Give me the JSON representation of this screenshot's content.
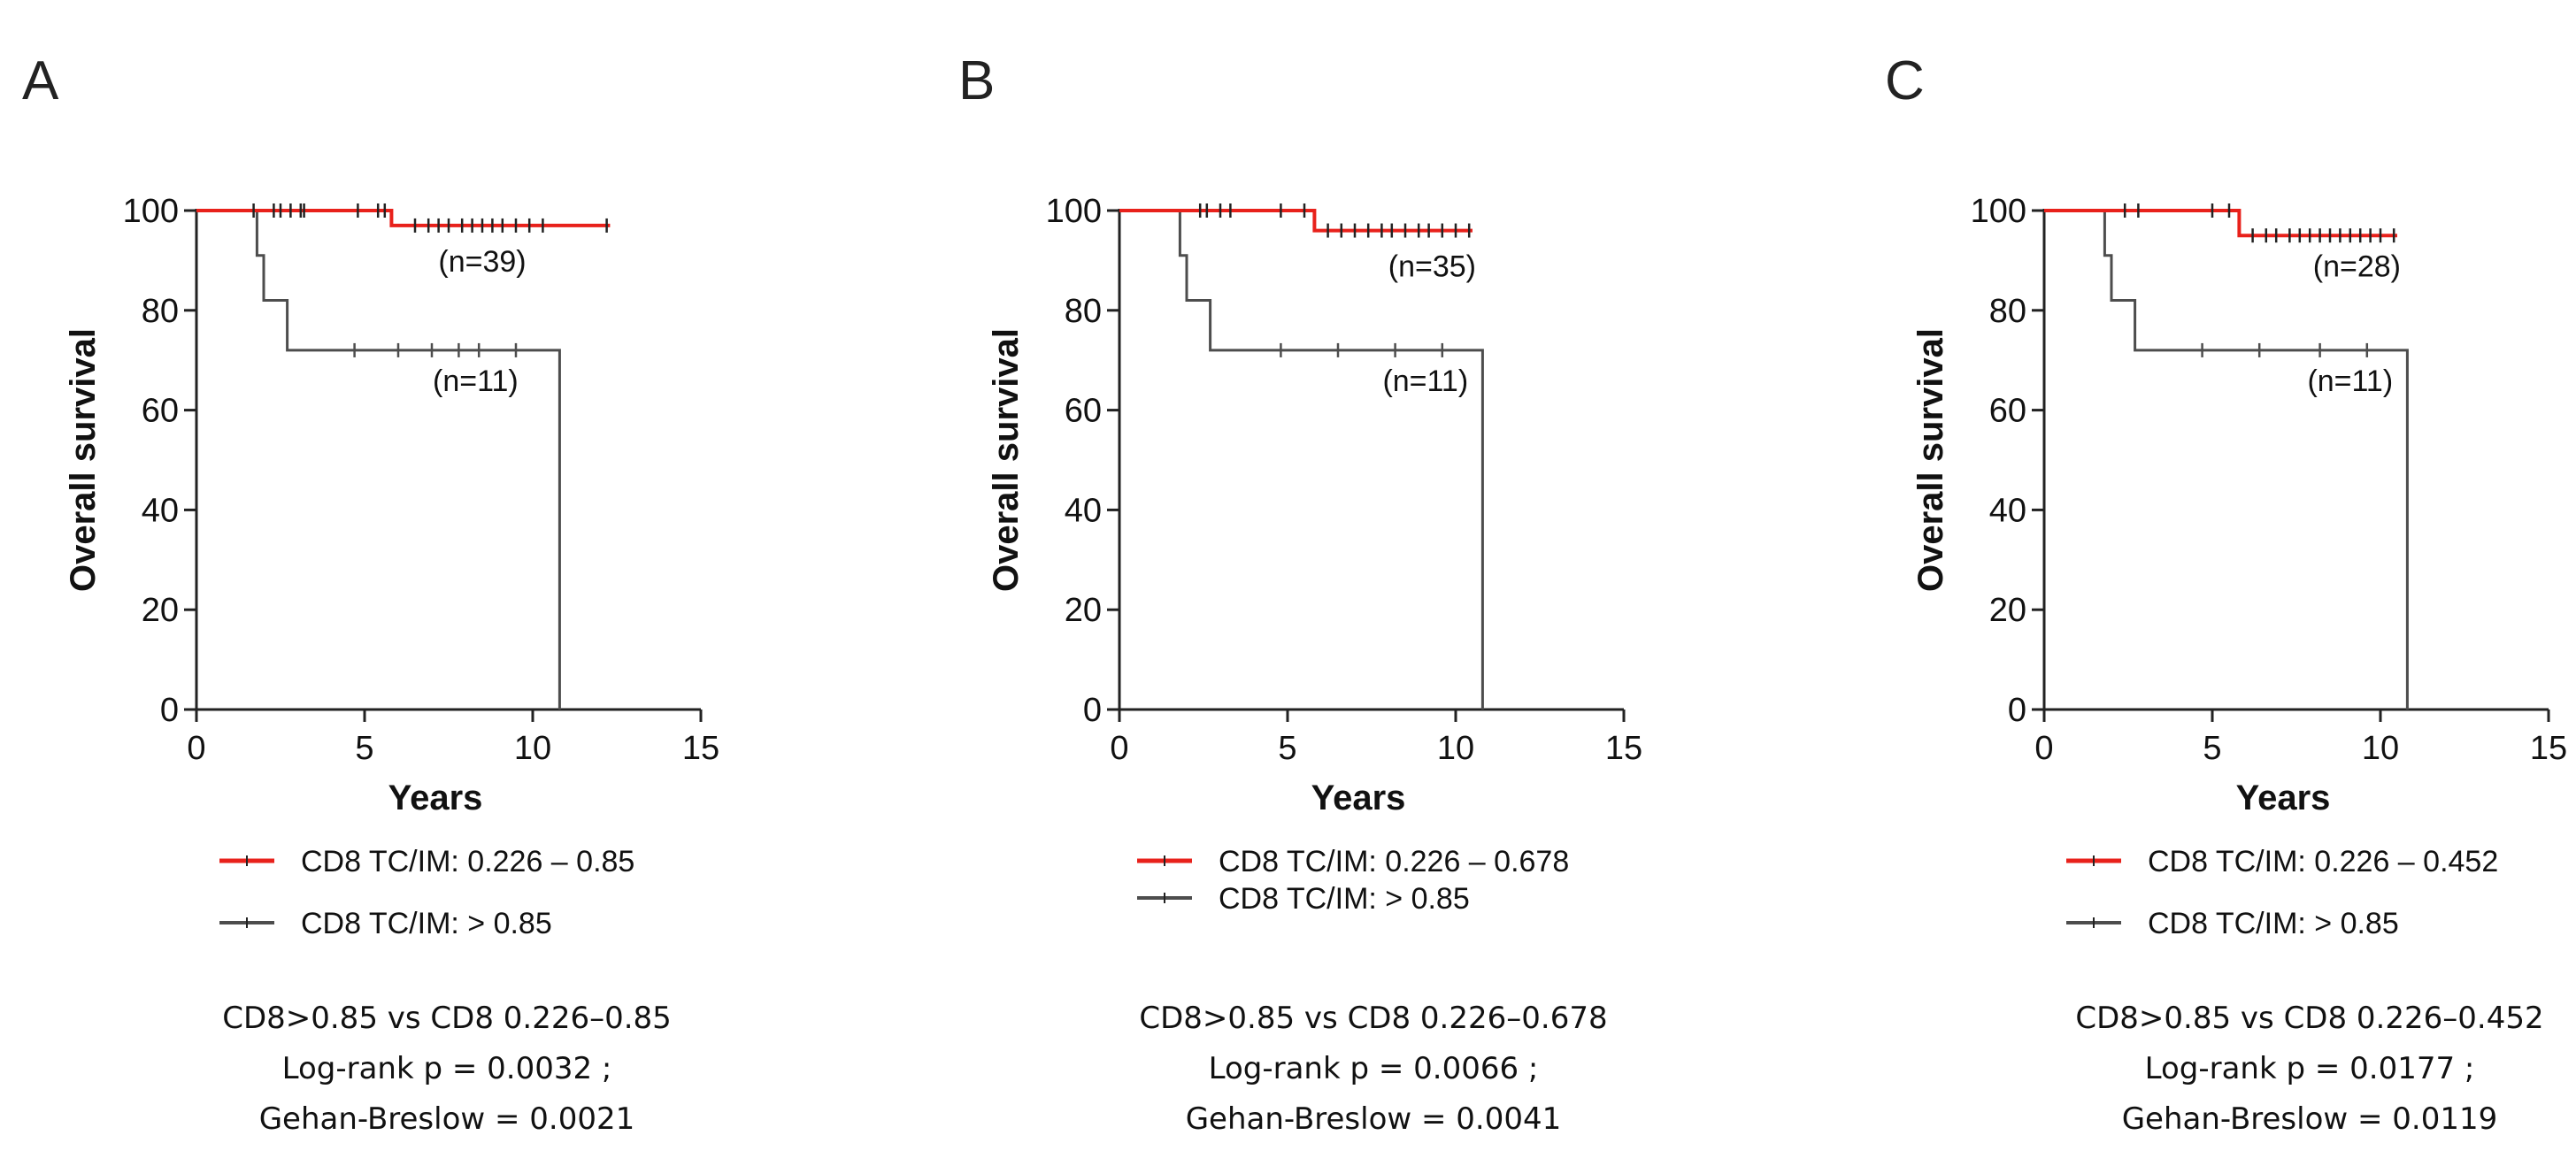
{
  "colors": {
    "low_group": "#e8211b",
    "high_group": "#4d4d4d",
    "axis": "#222222"
  },
  "chart_data": [
    {
      "type": "line",
      "subtype": "kaplan-meier",
      "panel_label": "A",
      "xlabel": "Years",
      "ylabel": "Overall survival",
      "xlim": [
        0,
        15
      ],
      "ylim": [
        0,
        100
      ],
      "xticks": [
        0,
        5,
        10,
        15
      ],
      "yticks": [
        0,
        20,
        40,
        60,
        80,
        100
      ],
      "series": [
        {
          "name": "CD8 TC/IM: 0.226 – 0.85",
          "color": "#e8211b",
          "n_label": "(n=39)",
          "steps": [
            [
              0,
              100
            ],
            [
              5.8,
              100
            ],
            [
              5.8,
              97
            ],
            [
              12.3,
              97
            ]
          ],
          "censors": [
            [
              1.7,
              100
            ],
            [
              2.3,
              100
            ],
            [
              2.5,
              100
            ],
            [
              2.8,
              100
            ],
            [
              3.1,
              100
            ],
            [
              3.2,
              100
            ],
            [
              4.8,
              100
            ],
            [
              5.4,
              100
            ],
            [
              5.6,
              100
            ],
            [
              6.5,
              97
            ],
            [
              6.9,
              97
            ],
            [
              7.2,
              97
            ],
            [
              7.5,
              97
            ],
            [
              7.9,
              97
            ],
            [
              8.2,
              97
            ],
            [
              8.5,
              97
            ],
            [
              8.8,
              97
            ],
            [
              9.1,
              97
            ],
            [
              9.5,
              97
            ],
            [
              9.9,
              97
            ],
            [
              10.3,
              97
            ],
            [
              12.2,
              97
            ]
          ]
        },
        {
          "name": "CD8 TC/IM: >  0.85",
          "color": "#4d4d4d",
          "n_label": "(n=11)",
          "steps": [
            [
              0,
              100
            ],
            [
              1.8,
              100
            ],
            [
              1.8,
              91
            ],
            [
              2.0,
              91
            ],
            [
              2.0,
              82
            ],
            [
              2.7,
              82
            ],
            [
              2.7,
              72
            ],
            [
              10.8,
              72
            ],
            [
              10.8,
              0
            ]
          ],
          "censors": [
            [
              4.7,
              72
            ],
            [
              6.0,
              72
            ],
            [
              7.0,
              72
            ],
            [
              7.8,
              72
            ],
            [
              8.4,
              72
            ],
            [
              9.5,
              72
            ]
          ]
        }
      ],
      "stats": [
        "CD8>0.85  vs CD8 0.226–0.85",
        "Log-rank p = 0.0032 ;",
        "Gehan-Breslow = 0.0021"
      ]
    },
    {
      "type": "line",
      "subtype": "kaplan-meier",
      "panel_label": "B",
      "xlabel": "Years",
      "ylabel": "Overall survival",
      "xlim": [
        0,
        15
      ],
      "ylim": [
        0,
        100
      ],
      "xticks": [
        0,
        5,
        10,
        15
      ],
      "yticks": [
        0,
        20,
        40,
        60,
        80,
        100
      ],
      "series": [
        {
          "name": "CD8 TC/IM: 0.226 – 0.678",
          "color": "#e8211b",
          "n_label": "(n=35)",
          "steps": [
            [
              0,
              100
            ],
            [
              5.8,
              100
            ],
            [
              5.8,
              96
            ],
            [
              10.5,
              96
            ]
          ],
          "censors": [
            [
              2.4,
              100
            ],
            [
              2.6,
              100
            ],
            [
              3.0,
              100
            ],
            [
              3.3,
              100
            ],
            [
              4.8,
              100
            ],
            [
              5.5,
              100
            ],
            [
              6.2,
              96
            ],
            [
              6.6,
              96
            ],
            [
              7.0,
              96
            ],
            [
              7.4,
              96
            ],
            [
              7.8,
              96
            ],
            [
              8.1,
              96
            ],
            [
              8.5,
              96
            ],
            [
              8.9,
              96
            ],
            [
              9.2,
              96
            ],
            [
              9.6,
              96
            ],
            [
              10.0,
              96
            ],
            [
              10.4,
              96
            ]
          ]
        },
        {
          "name": "CD8 TC/IM: >  0.85",
          "color": "#4d4d4d",
          "n_label": "(n=11)",
          "steps": [
            [
              0,
              100
            ],
            [
              1.8,
              100
            ],
            [
              1.8,
              91
            ],
            [
              2.0,
              91
            ],
            [
              2.0,
              82
            ],
            [
              2.7,
              82
            ],
            [
              2.7,
              72
            ],
            [
              10.8,
              72
            ],
            [
              10.8,
              0
            ]
          ],
          "censors": [
            [
              4.8,
              72
            ],
            [
              6.5,
              72
            ],
            [
              8.2,
              72
            ],
            [
              9.6,
              72
            ]
          ]
        }
      ],
      "stats": [
        "CD8>0.85  vs CD8 0.226–0.678",
        "Log-rank p = 0.0066 ;",
        "Gehan-Breslow = 0.0041"
      ]
    },
    {
      "type": "line",
      "subtype": "kaplan-meier",
      "panel_label": "C",
      "xlabel": "Years",
      "ylabel": "Overall survival",
      "xlim": [
        0,
        15
      ],
      "ylim": [
        0,
        100
      ],
      "xticks": [
        0,
        5,
        10,
        15
      ],
      "yticks": [
        0,
        20,
        40,
        60,
        80,
        100
      ],
      "series": [
        {
          "name": "CD8 TC/IM: 0.226 – 0.452",
          "color": "#e8211b",
          "n_label": "(n=28)",
          "steps": [
            [
              0,
              100
            ],
            [
              5.8,
              100
            ],
            [
              5.8,
              95
            ],
            [
              10.5,
              95
            ]
          ],
          "censors": [
            [
              2.4,
              100
            ],
            [
              2.8,
              100
            ],
            [
              5.0,
              100
            ],
            [
              5.5,
              100
            ],
            [
              6.2,
              95
            ],
            [
              6.6,
              95
            ],
            [
              6.9,
              95
            ],
            [
              7.3,
              95
            ],
            [
              7.6,
              95
            ],
            [
              7.9,
              95
            ],
            [
              8.2,
              95
            ],
            [
              8.5,
              95
            ],
            [
              8.8,
              95
            ],
            [
              9.1,
              95
            ],
            [
              9.4,
              95
            ],
            [
              9.7,
              95
            ],
            [
              10.0,
              95
            ],
            [
              10.4,
              95
            ]
          ]
        },
        {
          "name": "CD8 TC/IM: > 0.85",
          "color": "#4d4d4d",
          "n_label": "(n=11)",
          "steps": [
            [
              0,
              100
            ],
            [
              1.8,
              100
            ],
            [
              1.8,
              91
            ],
            [
              2.0,
              91
            ],
            [
              2.0,
              82
            ],
            [
              2.7,
              82
            ],
            [
              2.7,
              72
            ],
            [
              10.8,
              72
            ],
            [
              10.8,
              0
            ]
          ],
          "censors": [
            [
              4.7,
              72
            ],
            [
              6.4,
              72
            ],
            [
              8.2,
              72
            ],
            [
              9.6,
              72
            ]
          ]
        }
      ],
      "stats": [
        "CD8>0.85  vs CD8 0.226–0.452",
        "Log-rank p = 0.0177 ;",
        "Gehan-Breslow = 0.0119"
      ]
    }
  ]
}
